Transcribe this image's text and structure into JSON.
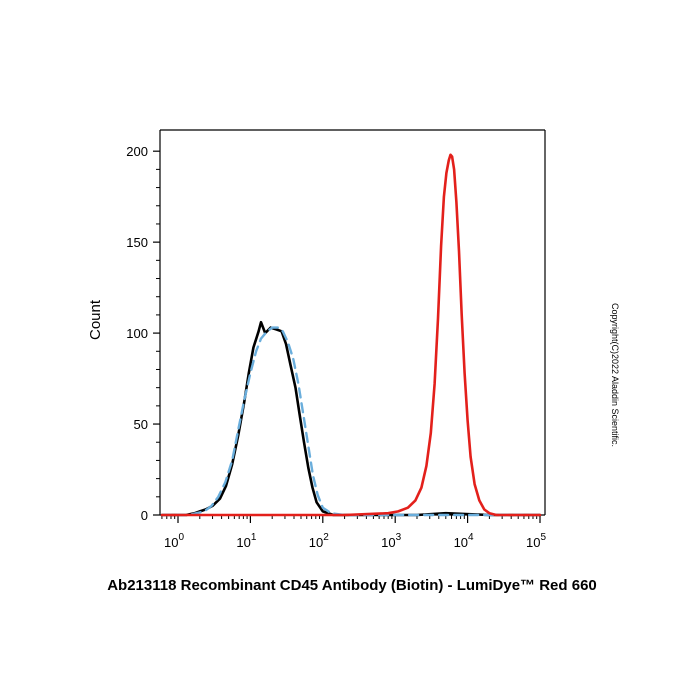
{
  "chart_data": {
    "type": "line",
    "title": "Ab213118 Recombinant CD45 Antibody (Biotin) - LumiDye™ Red 660",
    "xlabel": "",
    "ylabel": "Count",
    "x_scale": "log",
    "xlim": [
      0.5,
      100000
    ],
    "ylim": [
      0,
      210
    ],
    "x_ticks": [
      {
        "value": 1,
        "base": "10",
        "exp": "0"
      },
      {
        "value": 10,
        "base": "10",
        "exp": "1"
      },
      {
        "value": 100,
        "base": "10",
        "exp": "2"
      },
      {
        "value": 1000,
        "base": "10",
        "exp": "3"
      },
      {
        "value": 10000,
        "base": "10",
        "exp": "4"
      },
      {
        "value": 100000,
        "base": "10",
        "exp": "5"
      }
    ],
    "y_ticks": [
      {
        "value": 0,
        "label": "0"
      },
      {
        "value": 50,
        "label": "50"
      },
      {
        "value": 100,
        "label": "100"
      },
      {
        "value": 150,
        "label": "150"
      },
      {
        "value": 200,
        "label": "200"
      }
    ],
    "grid": false,
    "series": [
      {
        "color": "#000000",
        "style": "solid",
        "x": [
          0.6,
          1.3,
          1.7,
          2.0,
          2.4,
          3.0,
          3.8,
          4.6,
          5.6,
          6.8,
          8.2,
          9.5,
          11,
          13,
          14,
          16,
          19,
          23,
          27,
          31,
          36,
          42,
          48,
          55,
          63,
          72,
          82,
          100,
          140,
          300,
          2000,
          5000,
          20000,
          100000
        ],
        "y": [
          0,
          0,
          1,
          2,
          3,
          5,
          9,
          16,
          28,
          44,
          62,
          78,
          92,
          101,
          106,
          100,
          103,
          102,
          101,
          94,
          82,
          70,
          55,
          40,
          26,
          15,
          7,
          2,
          0,
          0,
          0,
          1,
          0,
          0
        ]
      },
      {
        "color": "#6aaedc",
        "style": "dashed",
        "x": [
          0.6,
          1.4,
          1.8,
          2.3,
          2.9,
          3.6,
          4.5,
          5.6,
          6.8,
          8.2,
          10,
          12,
          14,
          17,
          20,
          24,
          28,
          33,
          39,
          46,
          54,
          63,
          73,
          85,
          100,
          130,
          200,
          2000,
          20000,
          100000
        ],
        "y": [
          0,
          0,
          1,
          2,
          5,
          10,
          18,
          30,
          47,
          63,
          78,
          90,
          97,
          101,
          103,
          103,
          101,
          95,
          86,
          72,
          55,
          38,
          22,
          11,
          4,
          1,
          0,
          0,
          0,
          0
        ]
      },
      {
        "color": "#e3201b",
        "style": "solid",
        "x": [
          0.6,
          200,
          800,
          1100,
          1500,
          1900,
          2300,
          2700,
          3100,
          3500,
          3900,
          4300,
          4700,
          5100,
          5500,
          5800,
          6100,
          6500,
          7000,
          7600,
          8300,
          9100,
          10000,
          11000,
          12500,
          14500,
          17000,
          20000,
          25000,
          100000
        ],
        "y": [
          0,
          0,
          1,
          2,
          4,
          8,
          15,
          27,
          45,
          72,
          108,
          148,
          175,
          188,
          195,
          198,
          197,
          190,
          172,
          145,
          110,
          78,
          52,
          32,
          17,
          8,
          3,
          1,
          0,
          0
        ]
      }
    ]
  },
  "copyright": "Copyright(C)2022 Aladdin Scientific."
}
